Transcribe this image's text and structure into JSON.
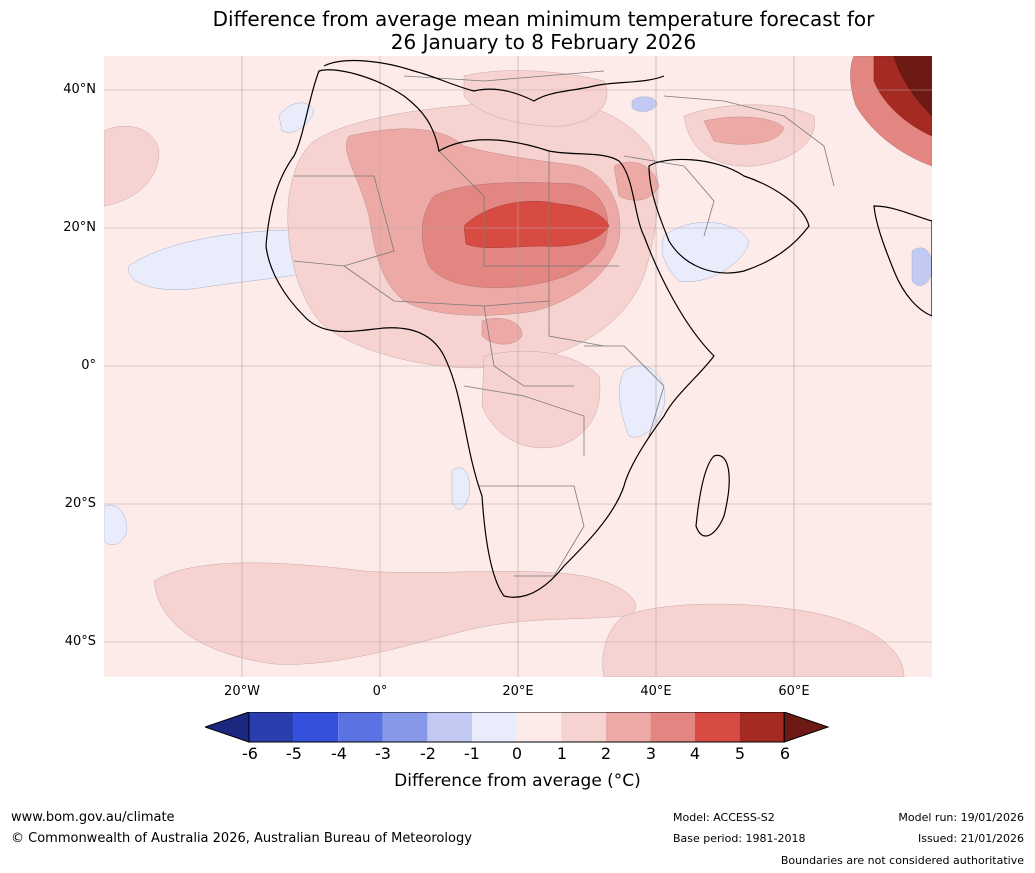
{
  "title": {
    "line1": "Difference from average mean minimum temperature forecast for",
    "line2": "26 January to 8 February 2026"
  },
  "map": {
    "lat_labels": [
      "40°N",
      "20°N",
      "0°",
      "20°S",
      "40°S"
    ],
    "lon_labels": [
      "20°W",
      "0°",
      "20°E",
      "40°E",
      "60°E"
    ],
    "colors": {
      "ocean_base": "#fcebe9",
      "c_1_2": "#f6d3d0",
      "c_2_3": "#eda9a6",
      "c_3_4": "#e38580",
      "c_4_5": "#d84b43",
      "c_5_6": "#a52a22",
      "c_gt6": "#6e1a14",
      "c_m1_0": "#e8ecfb",
      "c_m2_m1": "#c2c9f2",
      "graticule": "#b9a5a5",
      "coast": "#000000",
      "border": "#7a7a7a"
    }
  },
  "colorbar": {
    "ticks": [
      "-6",
      "-5",
      "-4",
      "-3",
      "-2",
      "-1",
      "0",
      "1",
      "2",
      "3",
      "4",
      "5",
      "6"
    ],
    "bins": [
      "#1c2880",
      "#2a3eb0",
      "#3351dd",
      "#5b72e2",
      "#8898e8",
      "#c2c9f2",
      "#e8ecfb",
      "#fcebe9",
      "#f6d3d0",
      "#eda9a6",
      "#e38580",
      "#d84b43",
      "#a52a22",
      "#6e1a14"
    ],
    "label": "Difference from average (°C)"
  },
  "footer": {
    "website": "www.bom.gov.au/climate",
    "copyright": "© Commonwealth of Australia 2026, Australian Bureau of Meteorology",
    "model": "Model: ACCESS-S2",
    "base_period": "Base period: 1981-2018",
    "model_run": "Model run: 19/01/2026",
    "issued": "Issued: 21/01/2026",
    "disclaimer": "Boundaries are not considered authoritative"
  }
}
